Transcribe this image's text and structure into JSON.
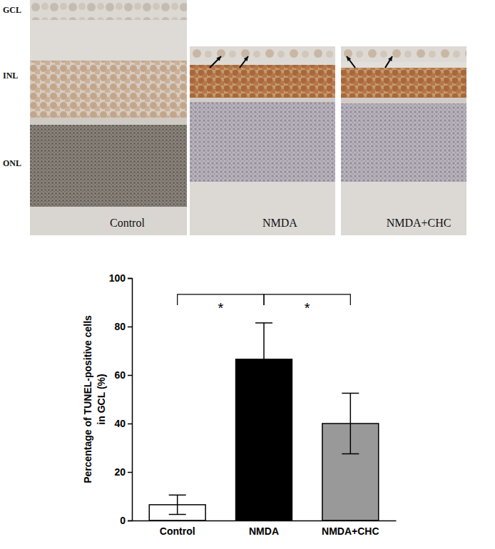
{
  "micrographs": {
    "layer_labels": [
      "GCL",
      "INL",
      "ONL"
    ],
    "panels": [
      "Control",
      "NMDA",
      "NMDA+CHC"
    ]
  },
  "chart_data": {
    "type": "bar",
    "y_label": "Percentage of TUNEL-positive cells\nin GCL (%)",
    "categories": [
      "Control",
      "NMDA",
      "NMDA+CHC"
    ],
    "values": [
      6.5,
      66.5,
      40
    ],
    "errors": [
      4,
      15,
      12.5
    ],
    "colors": [
      "#ffffff",
      "#000000",
      "#999999"
    ],
    "ylim": [
      0,
      100
    ],
    "yticks": [
      0,
      20,
      40,
      60,
      80,
      100
    ],
    "grid": false,
    "annotations": [
      {
        "text": "*",
        "from": 0,
        "to": 1
      },
      {
        "text": "*",
        "from": 1,
        "to": 2
      }
    ]
  }
}
